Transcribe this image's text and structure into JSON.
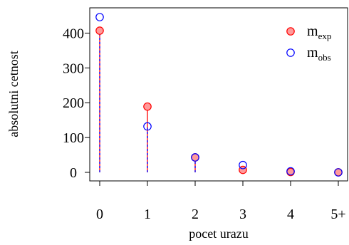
{
  "chart_data": {
    "type": "scatter",
    "xlabel": "pocet urazu",
    "ylabel": "absolutni cetnost",
    "categories": [
      "0",
      "1",
      "2",
      "3",
      "4",
      "5+"
    ],
    "yticks": [
      0,
      100,
      200,
      300,
      400
    ],
    "ylim": [
      0,
      450
    ],
    "legend_position": "top-right",
    "series": [
      {
        "name": "m",
        "name_sub": "exp",
        "values": [
          407,
          189,
          43,
          7,
          1,
          0.2
        ],
        "color": "#ff0000",
        "fill": "#ff9a9a"
      },
      {
        "name": "m",
        "name_sub": "obs",
        "values": [
          446,
          132,
          43,
          21,
          3,
          0
        ],
        "color": "#0000ff",
        "fill": "none"
      }
    ]
  }
}
